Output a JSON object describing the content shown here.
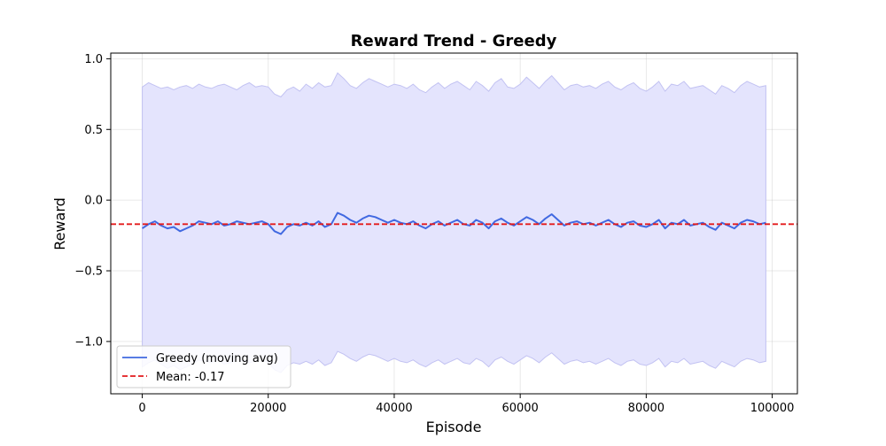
{
  "chart_data": {
    "type": "line",
    "title": "Reward Trend - Greedy",
    "xlabel": "Episode",
    "ylabel": "Reward",
    "xlim": [
      -5000,
      104000
    ],
    "ylim": [
      -1.37,
      1.04
    ],
    "xticks": [
      0,
      20000,
      40000,
      60000,
      80000,
      100000
    ],
    "xtick_labels": [
      "0",
      "20000",
      "40000",
      "60000",
      "80000",
      "100000"
    ],
    "yticks": [
      1.0,
      0.5,
      0.0,
      -0.5,
      -1.0
    ],
    "ytick_labels": [
      "1.0",
      "0.5",
      "0.0",
      "−0.5",
      "−1.0"
    ],
    "grid": true,
    "legend": "lower-left",
    "series": [
      {
        "name": "Greedy (moving avg)",
        "color": "#4169e1",
        "x": [
          0,
          1000,
          2000,
          3000,
          4000,
          5000,
          6000,
          7000,
          8000,
          9000,
          10000,
          11000,
          12000,
          13000,
          14000,
          15000,
          16000,
          17000,
          18000,
          19000,
          20000,
          21000,
          22000,
          23000,
          24000,
          25000,
          26000,
          27000,
          28000,
          29000,
          30000,
          31000,
          32000,
          33000,
          34000,
          35000,
          36000,
          37000,
          38000,
          39000,
          40000,
          41000,
          42000,
          43000,
          44000,
          45000,
          46000,
          47000,
          48000,
          49000,
          50000,
          51000,
          52000,
          53000,
          54000,
          55000,
          56000,
          57000,
          58000,
          59000,
          60000,
          61000,
          62000,
          63000,
          64000,
          65000,
          66000,
          67000,
          68000,
          69000,
          70000,
          71000,
          72000,
          73000,
          74000,
          75000,
          76000,
          77000,
          78000,
          79000,
          80000,
          81000,
          82000,
          83000,
          84000,
          85000,
          86000,
          87000,
          88000,
          89000,
          90000,
          91000,
          92000,
          93000,
          94000,
          95000,
          96000,
          97000,
          98000,
          99000
        ],
        "y": [
          -0.2,
          -0.17,
          -0.15,
          -0.18,
          -0.2,
          -0.19,
          -0.22,
          -0.2,
          -0.18,
          -0.15,
          -0.16,
          -0.17,
          -0.15,
          -0.18,
          -0.17,
          -0.15,
          -0.16,
          -0.17,
          -0.16,
          -0.15,
          -0.17,
          -0.22,
          -0.24,
          -0.19,
          -0.17,
          -0.18,
          -0.16,
          -0.18,
          -0.15,
          -0.19,
          -0.17,
          -0.09,
          -0.11,
          -0.14,
          -0.16,
          -0.13,
          -0.11,
          -0.12,
          -0.14,
          -0.16,
          -0.14,
          -0.16,
          -0.17,
          -0.15,
          -0.18,
          -0.2,
          -0.17,
          -0.15,
          -0.18,
          -0.16,
          -0.14,
          -0.17,
          -0.18,
          -0.14,
          -0.16,
          -0.2,
          -0.15,
          -0.13,
          -0.16,
          -0.18,
          -0.15,
          -0.12,
          -0.14,
          -0.17,
          -0.13,
          -0.1,
          -0.14,
          -0.18,
          -0.16,
          -0.15,
          -0.17,
          -0.16,
          -0.18,
          -0.16,
          -0.14,
          -0.17,
          -0.19,
          -0.16,
          -0.15,
          -0.18,
          -0.19,
          -0.17,
          -0.14,
          -0.2,
          -0.16,
          -0.17,
          -0.14,
          -0.18,
          -0.17,
          -0.16,
          -0.19,
          -0.21,
          -0.16,
          -0.18,
          -0.2,
          -0.16,
          -0.14,
          -0.15,
          -0.17,
          -0.16
        ]
      },
      {
        "name": "Mean: -0.17",
        "color": "#e31a1c",
        "style": "dashed",
        "value": -0.17
      }
    ],
    "band": {
      "color": "#e4e4fd",
      "edge_color": "#c2c2f2",
      "upper": [
        0.8,
        0.83,
        0.81,
        0.79,
        0.8,
        0.78,
        0.8,
        0.81,
        0.79,
        0.82,
        0.8,
        0.79,
        0.81,
        0.82,
        0.8,
        0.78,
        0.81,
        0.83,
        0.8,
        0.81,
        0.8,
        0.75,
        0.73,
        0.78,
        0.8,
        0.77,
        0.82,
        0.79,
        0.83,
        0.8,
        0.81,
        0.9,
        0.86,
        0.81,
        0.79,
        0.83,
        0.86,
        0.84,
        0.82,
        0.8,
        0.82,
        0.81,
        0.79,
        0.82,
        0.78,
        0.76,
        0.8,
        0.83,
        0.79,
        0.82,
        0.84,
        0.81,
        0.78,
        0.84,
        0.81,
        0.77,
        0.83,
        0.86,
        0.8,
        0.79,
        0.82,
        0.87,
        0.83,
        0.79,
        0.84,
        0.88,
        0.83,
        0.78,
        0.81,
        0.82,
        0.8,
        0.81,
        0.79,
        0.82,
        0.84,
        0.8,
        0.78,
        0.81,
        0.83,
        0.79,
        0.77,
        0.8,
        0.84,
        0.77,
        0.82,
        0.81,
        0.84,
        0.79,
        0.8,
        0.81,
        0.78,
        0.75,
        0.81,
        0.79,
        0.76,
        0.81,
        0.84,
        0.82,
        0.8,
        0.81
      ],
      "lower": [
        -1.18,
        -1.15,
        -1.13,
        -1.16,
        -1.19,
        -1.17,
        -1.2,
        -1.18,
        -1.16,
        -1.13,
        -1.14,
        -1.15,
        -1.13,
        -1.16,
        -1.15,
        -1.13,
        -1.14,
        -1.15,
        -1.14,
        -1.13,
        -1.15,
        -1.2,
        -1.22,
        -1.17,
        -1.15,
        -1.16,
        -1.14,
        -1.16,
        -1.13,
        -1.17,
        -1.15,
        -1.07,
        -1.09,
        -1.12,
        -1.14,
        -1.11,
        -1.09,
        -1.1,
        -1.12,
        -1.14,
        -1.12,
        -1.14,
        -1.15,
        -1.13,
        -1.16,
        -1.18,
        -1.15,
        -1.13,
        -1.16,
        -1.14,
        -1.12,
        -1.15,
        -1.16,
        -1.12,
        -1.14,
        -1.18,
        -1.13,
        -1.11,
        -1.14,
        -1.16,
        -1.13,
        -1.1,
        -1.12,
        -1.15,
        -1.11,
        -1.08,
        -1.12,
        -1.16,
        -1.14,
        -1.13,
        -1.15,
        -1.14,
        -1.16,
        -1.14,
        -1.12,
        -1.15,
        -1.17,
        -1.14,
        -1.13,
        -1.16,
        -1.17,
        -1.15,
        -1.12,
        -1.18,
        -1.14,
        -1.15,
        -1.12,
        -1.16,
        -1.15,
        -1.14,
        -1.17,
        -1.19,
        -1.14,
        -1.16,
        -1.18,
        -1.14,
        -1.12,
        -1.13,
        -1.15,
        -1.14
      ]
    }
  }
}
